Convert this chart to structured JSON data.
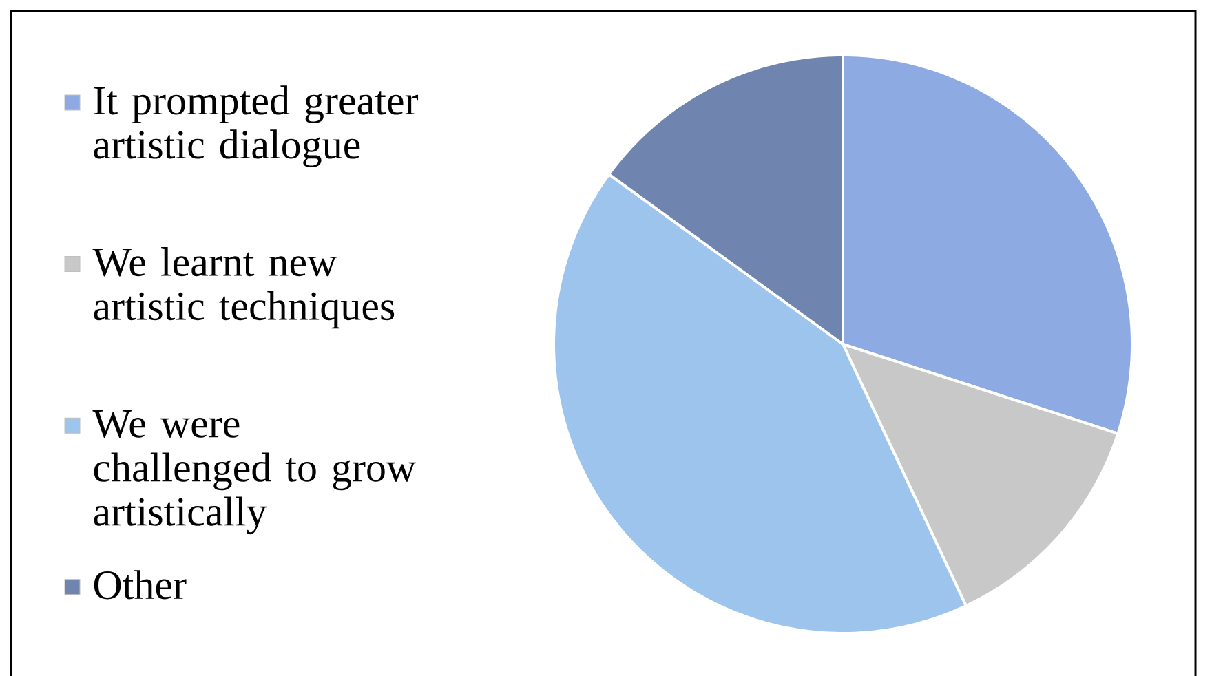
{
  "chart_data": {
    "type": "pie",
    "categories": [
      "It prompted greater artistic dialogue",
      "We learnt new artistic techniques",
      "We were challenged to grow artistically",
      "Other"
    ],
    "values": [
      30,
      13,
      42,
      15
    ],
    "colors": [
      "#8eaae2",
      "#c8c8c8",
      "#9dc4ec",
      "#6f84ae"
    ],
    "legend": "left"
  }
}
